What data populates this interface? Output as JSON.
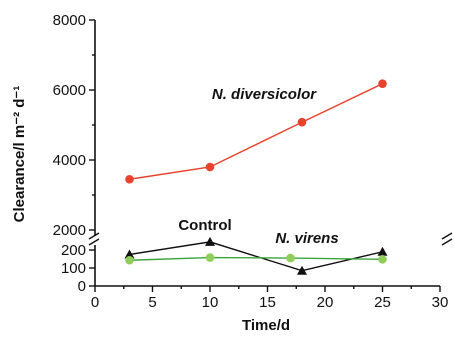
{
  "chart_data": {
    "type": "line",
    "xlabel": "Time/d",
    "ylabel": "Clearance/l m⁻² d⁻¹",
    "xlim": [
      0,
      30
    ],
    "xticks": [
      "0",
      "5",
      "10",
      "15",
      "20",
      "25",
      "30"
    ],
    "ylim_upper": [
      2000,
      8000
    ],
    "yticks_upper": [
      "2000",
      "4000",
      "6000",
      "8000"
    ],
    "ylim_lower": [
      0,
      200
    ],
    "yticks_lower": [
      "0",
      "100",
      "200"
    ],
    "axis_break": true,
    "grid": false,
    "series": [
      {
        "name": "N. diversicolor",
        "color": "#e8412e",
        "marker": "circle",
        "x": [
          3,
          10,
          18,
          25
        ],
        "y": [
          3450,
          3800,
          5080,
          6180
        ]
      },
      {
        "name": "Control",
        "color": "#111111",
        "marker": "triangle",
        "x": [
          3,
          10,
          18,
          25
        ],
        "y": [
          175,
          245,
          85,
          190
        ]
      },
      {
        "name": "N. virens",
        "color": "#3aa63a",
        "marker": "circle",
        "marker_color": "#8fce5a",
        "x": [
          3,
          10,
          17,
          25
        ],
        "y": [
          143,
          158,
          155,
          148
        ]
      }
    ]
  }
}
